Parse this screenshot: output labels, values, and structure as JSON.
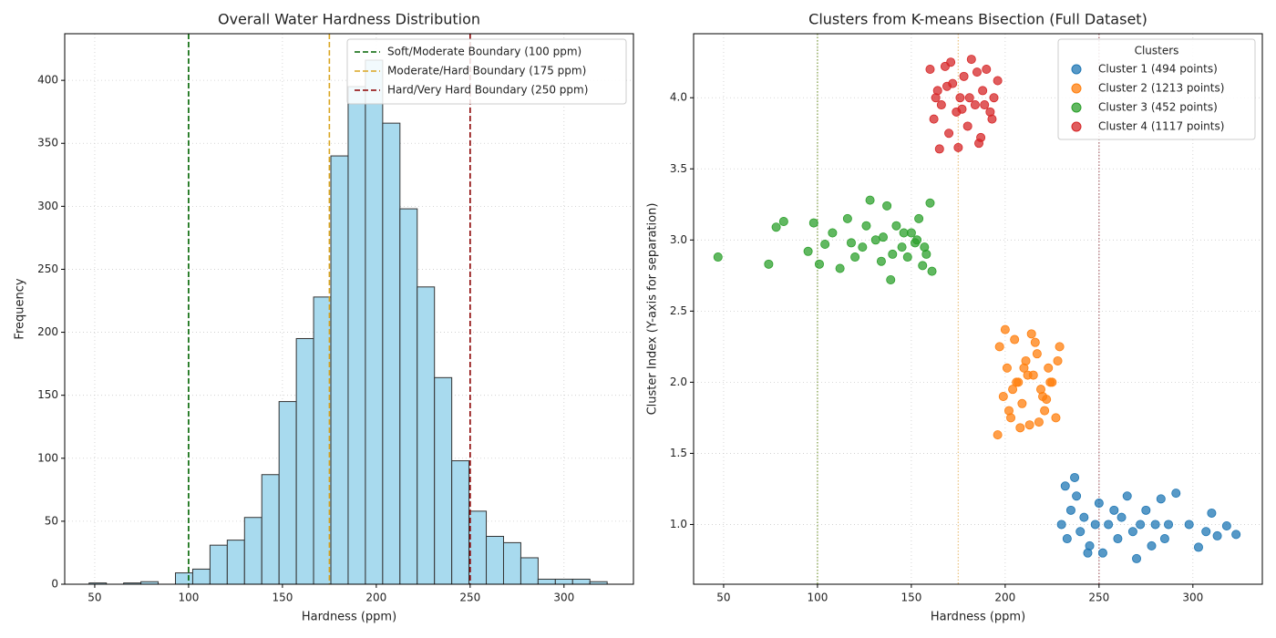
{
  "chart_data": [
    {
      "type": "histogram",
      "title": "Overall Water Hardness Distribution",
      "x_label": "Hardness (ppm)",
      "y_label": "Frequency",
      "bins": [
        47,
        56.2,
        65.4,
        74.6,
        83.8,
        93,
        102.2,
        111.4,
        120.6,
        129.8,
        139,
        148.2,
        157.4,
        166.6,
        175.8,
        185,
        194.2,
        203.4,
        212.6,
        221.8,
        231,
        240.2,
        249.4,
        258.6,
        267.8,
        277,
        286.2,
        295.4,
        304.6,
        313.8,
        323
      ],
      "values": [
        1,
        0,
        1,
        2,
        0,
        9,
        12,
        31,
        35,
        53,
        87,
        145,
        195,
        228,
        340,
        395,
        416,
        366,
        298,
        236,
        164,
        98,
        58,
        38,
        33,
        21,
        4,
        4,
        4,
        2
      ],
      "color": "#a8daee",
      "edge_color": "#333333",
      "xlim": [
        34,
        337
      ],
      "ylim": [
        0,
        437
      ],
      "xticks": [
        50,
        100,
        150,
        200,
        250,
        300
      ],
      "yticks": [
        0,
        50,
        100,
        150,
        200,
        250,
        300,
        350,
        400
      ],
      "grid": true,
      "legend": "upper right",
      "vlines": [
        {
          "x": 100,
          "color": "#006400",
          "label": "Soft/Moderate Boundary (100 ppm)"
        },
        {
          "x": 175,
          "color": "#daa520",
          "label": "Moderate/Hard Boundary (175 ppm)"
        },
        {
          "x": 250,
          "color": "#8b0000",
          "label": "Hard/Very Hard Boundary (250 ppm)"
        }
      ]
    },
    {
      "type": "scatter",
      "title": "Clusters from K-means Bisection (Full Dataset)",
      "x_label": "Hardness (ppm)",
      "y_label": "Cluster Index (Y-axis for separation)",
      "xlim": [
        34,
        337
      ],
      "ylim": [
        0.58,
        4.45
      ],
      "xticks": [
        50,
        100,
        150,
        200,
        250,
        300
      ],
      "yticks": [
        {
          "value": 1,
          "label": "1.0"
        },
        {
          "value": 1.5,
          "label": "1.5"
        },
        {
          "value": 2,
          "label": "2.0"
        },
        {
          "value": 2.5,
          "label": "2.5"
        },
        {
          "value": 3,
          "label": "3.0"
        },
        {
          "value": 3.5,
          "label": "3.5"
        },
        {
          "value": 4,
          "label": "4.0"
        }
      ],
      "grid": true,
      "legend": "upper right",
      "legend_title": "Clusters",
      "vlines": [
        {
          "x": 100,
          "color": "#6b8e23"
        },
        {
          "x": 175,
          "color": "#e8b86a"
        },
        {
          "x": 250,
          "color": "#a0525a"
        }
      ],
      "series": [
        {
          "name": "Cluster 1 (494 points)",
          "color": "#1f77b4",
          "x": [
            230,
            233,
            235,
            238,
            240,
            242,
            245,
            248,
            250,
            252,
            255,
            258,
            260,
            262,
            265,
            268,
            270,
            272,
            275,
            278,
            280,
            283,
            285,
            287,
            291,
            298,
            303,
            307,
            310,
            313,
            318,
            323,
            237,
            232,
            244
          ],
          "values": [
            1.0,
            0.9,
            1.1,
            1.2,
            0.95,
            1.05,
            0.85,
            1.0,
            1.15,
            0.8,
            1.0,
            1.1,
            0.9,
            1.05,
            1.2,
            0.95,
            0.76,
            1.0,
            1.1,
            0.85,
            1.0,
            1.18,
            0.9,
            1.0,
            1.22,
            1.0,
            0.84,
            0.95,
            1.08,
            0.92,
            0.99,
            0.93,
            1.33,
            1.27,
            0.8
          ]
        },
        {
          "name": "Cluster 2 (1213 points)",
          "color": "#ff7f0e",
          "x": [
            197,
            199,
            201,
            203,
            205,
            207,
            209,
            211,
            213,
            215,
            217,
            219,
            221,
            223,
            225,
            227,
            229,
            200,
            204,
            208,
            212,
            216,
            220,
            224,
            228,
            202,
            210,
            218,
            196,
            214,
            206,
            222
          ],
          "values": [
            2.25,
            1.9,
            2.1,
            1.75,
            2.3,
            2.0,
            1.85,
            2.15,
            1.7,
            2.05,
            2.2,
            1.95,
            1.8,
            2.1,
            2.0,
            1.75,
            2.25,
            2.37,
            1.95,
            1.68,
            2.05,
            2.28,
            1.9,
            2.0,
            2.15,
            1.8,
            2.1,
            1.72,
            1.63,
            2.34,
            2.0,
            1.88
          ]
        },
        {
          "name": "Cluster 3 (452 points)",
          "color": "#2ca02c",
          "x": [
            47,
            74,
            78,
            82,
            95,
            98,
            101,
            104,
            108,
            112,
            116,
            120,
            124,
            128,
            131,
            134,
            137,
            139,
            142,
            145,
            148,
            150,
            152,
            154,
            156,
            158,
            160,
            161,
            126,
            118,
            140,
            146,
            153,
            157,
            135
          ],
          "values": [
            2.88,
            2.83,
            3.09,
            3.13,
            2.92,
            3.12,
            2.83,
            2.97,
            3.05,
            2.8,
            3.15,
            2.88,
            2.95,
            3.28,
            3.0,
            2.85,
            3.24,
            2.72,
            3.1,
            2.95,
            2.88,
            3.05,
            2.98,
            3.15,
            2.82,
            2.9,
            3.26,
            2.78,
            3.1,
            2.98,
            2.9,
            3.05,
            3.0,
            2.95,
            3.02
          ]
        },
        {
          "name": "Cluster 4 (1117 points)",
          "color": "#d62728",
          "x": [
            160,
            162,
            164,
            166,
            168,
            170,
            172,
            174,
            176,
            178,
            180,
            182,
            184,
            186,
            188,
            190,
            192,
            194,
            196,
            165,
            171,
            175,
            181,
            187,
            193,
            169,
            177,
            185,
            163,
            189
          ],
          "values": [
            4.2,
            3.85,
            4.05,
            3.95,
            4.22,
            3.75,
            4.1,
            3.9,
            4.0,
            4.15,
            3.8,
            4.27,
            3.95,
            3.68,
            4.05,
            4.2,
            3.9,
            4.0,
            4.12,
            3.64,
            4.25,
            3.65,
            4.0,
            3.72,
            3.85,
            4.08,
            3.92,
            4.18,
            4.0,
            3.95
          ]
        }
      ]
    }
  ]
}
